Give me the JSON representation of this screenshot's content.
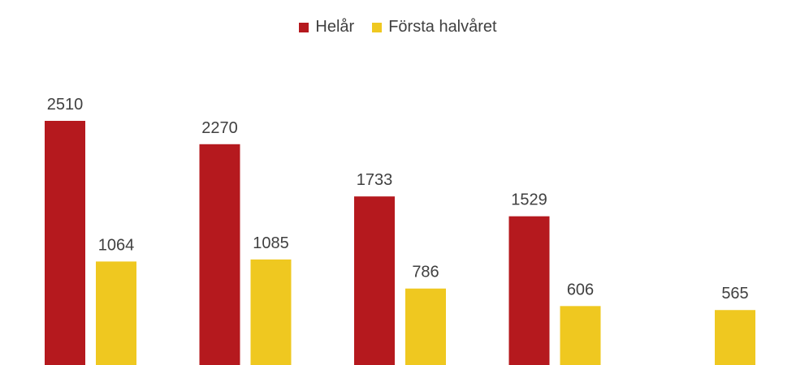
{
  "chart_data": {
    "type": "bar",
    "categories": [
      "",
      "",
      "",
      "",
      ""
    ],
    "series": [
      {
        "name": "Helår",
        "color": "#b5191e",
        "values": [
          2510,
          2270,
          1733,
          1529,
          null
        ]
      },
      {
        "name": "Första halvåret",
        "color": "#efc820",
        "values": [
          1064,
          1085,
          786,
          606,
          565
        ]
      }
    ],
    "legend_position": "top-center",
    "grid": false,
    "title": "",
    "xlabel": "",
    "ylabel": ""
  }
}
